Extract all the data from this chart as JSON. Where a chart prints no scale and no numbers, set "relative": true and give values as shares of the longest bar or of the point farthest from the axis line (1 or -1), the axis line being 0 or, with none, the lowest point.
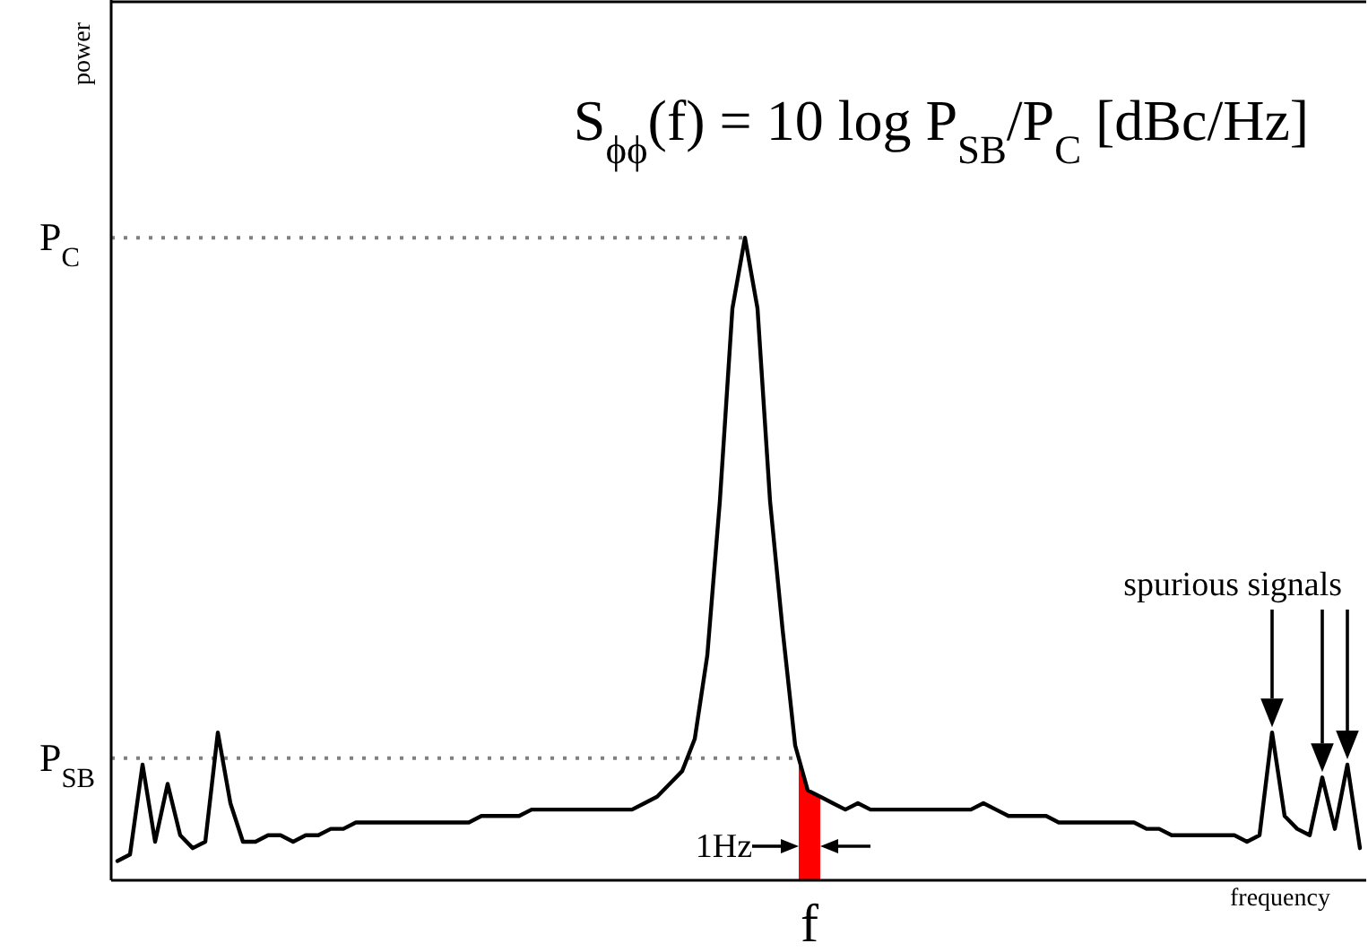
{
  "chart_data": {
    "type": "line",
    "relative": true,
    "title": "S$_{ϕϕ}$(f) = 10 log P$_{SB}$/P$_{C}$ [dBc/Hz]",
    "xlabel": "frequency",
    "grid": false,
    "marker": "none",
    "line_style": "solid",
    "categories": [
      null,
      null,
      null,
      null,
      null,
      null,
      null,
      null,
      null,
      null,
      null,
      null,
      null,
      null,
      null,
      null,
      null,
      null,
      null,
      null,
      null,
      null,
      null,
      null,
      null,
      null,
      null,
      null,
      null,
      null,
      null,
      null,
      null,
      null,
      null,
      null,
      null,
      null,
      null,
      null,
      null,
      null,
      null,
      null,
      null,
      null,
      null,
      null,
      null,
      null,
      null,
      null,
      null,
      null,
      null,
      null,
      null,
      null,
      null,
      null,
      null,
      null,
      null,
      null,
      null,
      null,
      null,
      null,
      null,
      null,
      null,
      null,
      null,
      null,
      null,
      null,
      null,
      null,
      null,
      null,
      null,
      null,
      null,
      null,
      null,
      null,
      null,
      null,
      null,
      null,
      null,
      null,
      null,
      null,
      null,
      null,
      null,
      null,
      null,
      null
    ],
    "series": [
      {
        "color": "#000000",
        "values": [
          0.03,
          0.04,
          0.18,
          0.06,
          0.15,
          0.07,
          0.05,
          0.06,
          0.23,
          0.12,
          0.06,
          0.06,
          0.07,
          0.07,
          0.06,
          0.07,
          0.07,
          0.08,
          0.08,
          0.09,
          0.09,
          0.09,
          0.09,
          0.09,
          0.09,
          0.09,
          0.09,
          0.09,
          0.09,
          0.1,
          0.1,
          0.1,
          0.1,
          0.11,
          0.11,
          0.11,
          0.11,
          0.11,
          0.11,
          0.11,
          0.11,
          0.11,
          0.12,
          0.13,
          0.15,
          0.17,
          0.22,
          0.35,
          0.59,
          0.89,
          1.0,
          0.89,
          0.59,
          0.39,
          0.21,
          0.14,
          0.13,
          0.12,
          0.11,
          0.12,
          0.11,
          0.11,
          0.11,
          0.11,
          0.11,
          0.11,
          0.11,
          0.11,
          0.11,
          0.12,
          0.11,
          0.1,
          0.1,
          0.1,
          0.1,
          0.09,
          0.09,
          0.09,
          0.09,
          0.09,
          0.09,
          0.09,
          0.08,
          0.08,
          0.07,
          0.07,
          0.07,
          0.07,
          0.07,
          0.07,
          0.06,
          0.07,
          0.23,
          0.1,
          0.08,
          0.07,
          0.16,
          0.08,
          0.18,
          0.05
        ]
      }
    ],
    "ref_lines": [
      {
        "axis": "y",
        "value": 1.0,
        "label": "P$_{C}$",
        "color": "#808080",
        "line_style": "dotted"
      },
      {
        "axis": "y",
        "value": 0.19,
        "label": "P$_{SB}$",
        "color": "#808080",
        "line_style": "dotted"
      }
    ],
    "annotations": [
      "spurious signals",
      "f",
      "1Hz",
      "power"
    ]
  }
}
